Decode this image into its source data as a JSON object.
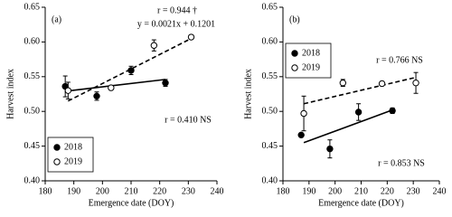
{
  "chart_data": [
    {
      "type": "scatter",
      "x_label": "Emergence date (DOY)",
      "y_label": "Harvest index",
      "annotations": [
        "(a)",
        "r = 0.944 †",
        "y = 0.0021x + 0.1201",
        "r = 0.410 NS"
      ],
      "xlim": [
        180,
        240
      ],
      "xticks": [
        180,
        190,
        200,
        210,
        220,
        230,
        240
      ],
      "ylim": [
        0.4,
        0.65
      ],
      "yticks": [
        {
          "value": 0.4,
          "label": "0.40"
        },
        {
          "value": 0.45,
          "label": "0.45"
        },
        {
          "value": 0.5,
          "label": "0.50"
        },
        {
          "value": 0.55,
          "label": "0.55"
        },
        {
          "value": 0.6,
          "label": "0.60"
        },
        {
          "value": 0.65,
          "label": "0.65"
        }
      ],
      "legend": "lower left",
      "grid": false,
      "series": [
        {
          "name": "2018",
          "color": "#000000",
          "marker_fill": "#000000",
          "x": [
            187,
            198,
            210,
            222
          ],
          "values": [
            0.536,
            0.522,
            0.559,
            0.541
          ],
          "errors": [
            0.015,
            0.006,
            0.006,
            0.005
          ],
          "line_style": "solid",
          "trend": {
            "x": [
              187,
              222
            ],
            "values": [
              0.529,
              0.546
            ]
          }
        },
        {
          "name": "2019",
          "color": "#000000",
          "marker_fill": "#ffffff",
          "x": [
            188,
            203,
            218,
            231
          ],
          "values": [
            0.53,
            0.534,
            0.595,
            0.607
          ],
          "errors": [
            0.012,
            null,
            0.008,
            null
          ],
          "line_style": "dashed",
          "trend": {
            "x": [
              188,
              231
            ],
            "values": [
              0.515,
              0.605
            ]
          }
        }
      ]
    },
    {
      "type": "scatter",
      "x_label": "Emergence date (DOY)",
      "y_label": "Harvest index",
      "annotations": [
        "(b)",
        "r = 0.766 NS",
        "r = 0.853 NS"
      ],
      "xlim": [
        180,
        240
      ],
      "xticks": [
        180,
        190,
        200,
        210,
        220,
        230,
        240
      ],
      "ylim": [
        0.4,
        0.65
      ],
      "yticks": [
        {
          "value": 0.4,
          "label": "0.40"
        },
        {
          "value": 0.45,
          "label": "0.45"
        },
        {
          "value": 0.5,
          "label": "0.50"
        },
        {
          "value": 0.55,
          "label": "0.55"
        },
        {
          "value": 0.6,
          "label": "0.60"
        },
        {
          "value": 0.65,
          "label": "0.65"
        }
      ],
      "legend": "upper left",
      "grid": false,
      "series": [
        {
          "name": "2018",
          "color": "#000000",
          "marker_fill": "#000000",
          "x": [
            187,
            198,
            209,
            222
          ],
          "values": [
            0.466,
            0.446,
            0.499,
            0.501
          ],
          "errors": [
            null,
            0.013,
            0.012,
            0.004
          ],
          "line_style": "solid",
          "trend": {
            "x": [
              188,
              222
            ],
            "values": [
              0.455,
              0.502
            ]
          }
        },
        {
          "name": "2019",
          "color": "#000000",
          "marker_fill": "#ffffff",
          "x": [
            188,
            203,
            218,
            231
          ],
          "values": [
            0.497,
            0.541,
            0.54,
            0.541
          ],
          "errors": [
            0.025,
            0.005,
            null,
            0.015
          ],
          "line_style": "dashed",
          "trend": {
            "x": [
              188,
              231
            ],
            "values": [
              0.511,
              0.549
            ]
          }
        }
      ]
    }
  ]
}
